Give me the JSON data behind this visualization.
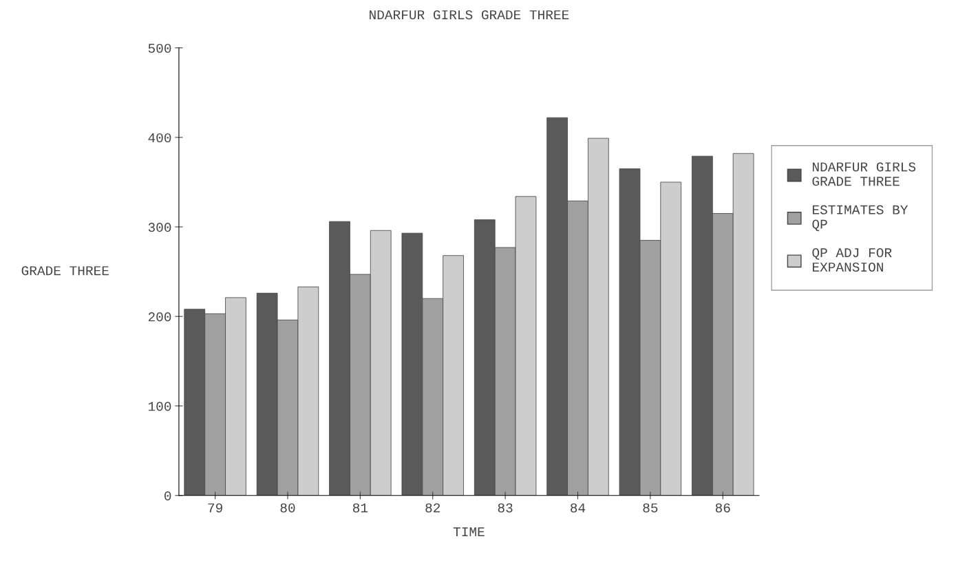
{
  "chart_data": {
    "type": "bar",
    "title": "NDARFUR GIRLS GRADE THREE",
    "xlabel": "TIME",
    "ylabel": "GRADE THREE",
    "categories": [
      "79",
      "80",
      "81",
      "82",
      "83",
      "84",
      "85",
      "86"
    ],
    "series": [
      {
        "name": "NDARFUR GIRLS\nGRADE THREE",
        "color": "#5a5a5a",
        "values": [
          208,
          226,
          306,
          293,
          308,
          422,
          365,
          379
        ]
      },
      {
        "name": "ESTIMATES BY\nQP",
        "color": "#a0a0a0",
        "values": [
          203,
          196,
          247,
          220,
          277,
          329,
          285,
          315
        ]
      },
      {
        "name": "QP ADJ FOR\nEXPANSION",
        "color": "#cdcdcd",
        "values": [
          221,
          233,
          296,
          268,
          334,
          399,
          350,
          382
        ]
      }
    ],
    "ylim": [
      0,
      500
    ],
    "yticks": [
      0,
      100,
      200,
      300,
      400,
      500
    ],
    "grid": false,
    "legend": "right"
  }
}
